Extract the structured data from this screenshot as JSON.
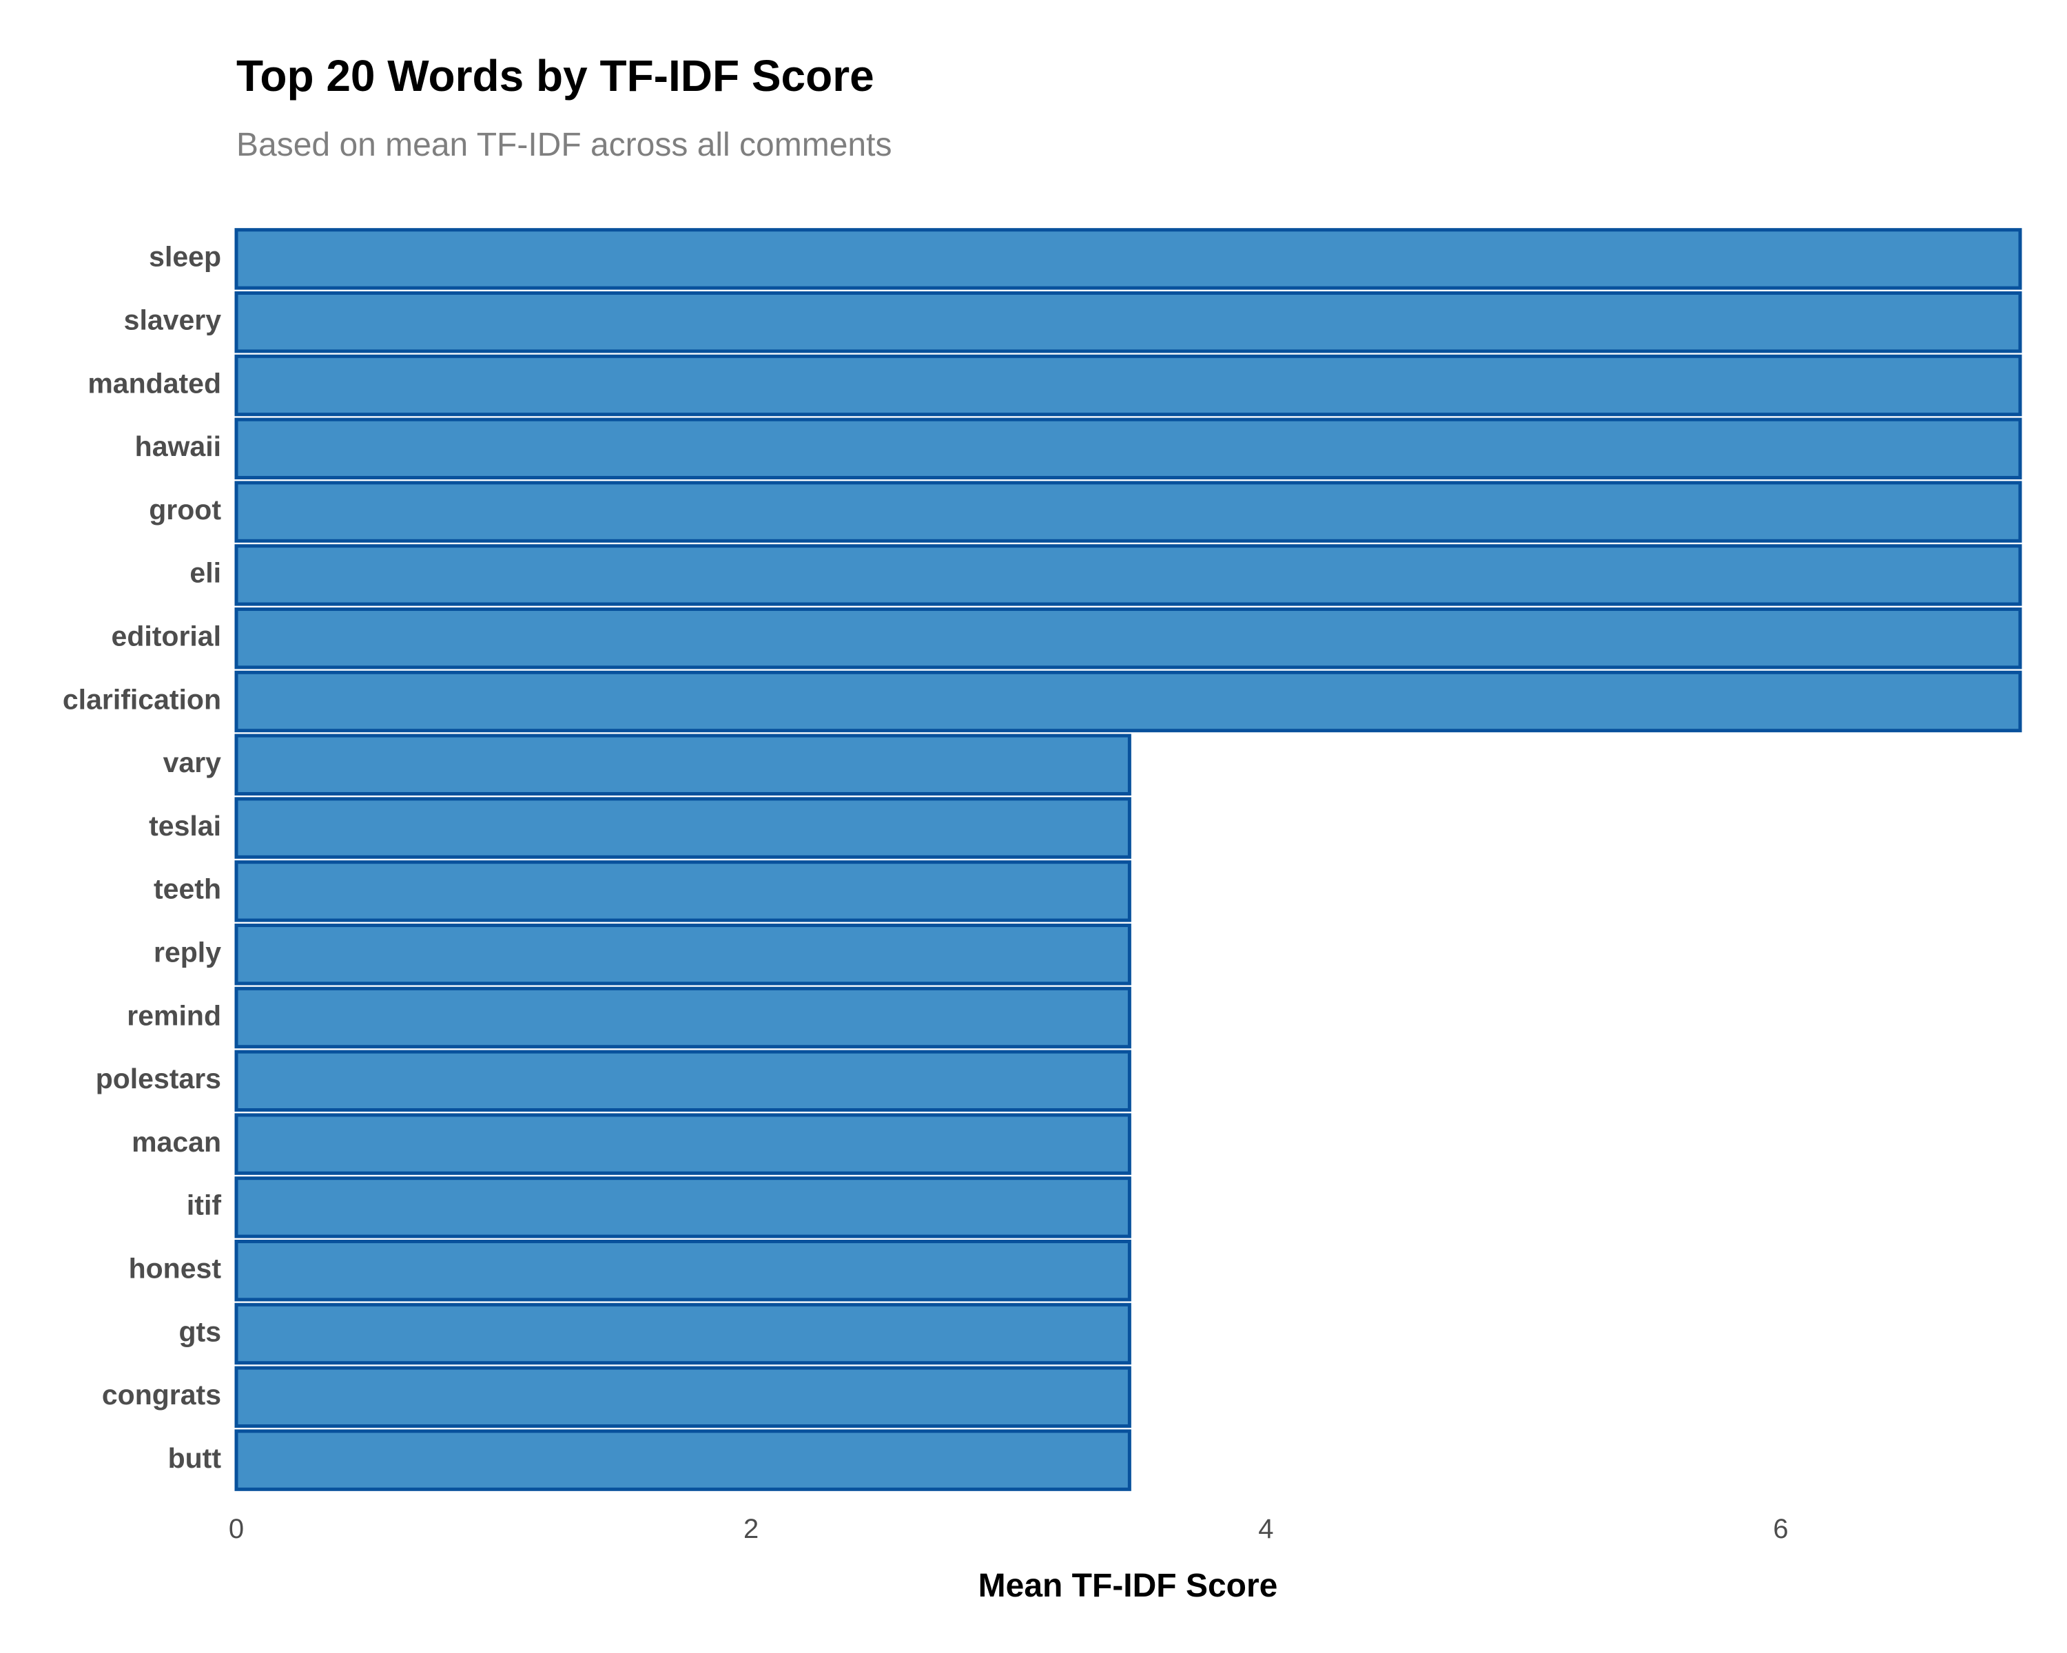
{
  "chart_data": {
    "type": "bar",
    "orientation": "horizontal",
    "title": "Top 20 Words by TF-IDF Score",
    "subtitle": "Based on mean TF-IDF across all comments",
    "xlabel": "Mean TF-IDF Score",
    "ylabel": "",
    "xlim": [
      0,
      6.93
    ],
    "x_ticks": [
      0,
      2,
      4,
      6
    ],
    "grid": false,
    "legend": "none",
    "bar_fill_color": "#4290c8",
    "bar_edge_color": "#08519c",
    "categories": [
      "sleep",
      "slavery",
      "mandated",
      "hawaii",
      "groot",
      "eli",
      "editorial",
      "clarification",
      "vary",
      "teslai",
      "teeth",
      "reply",
      "remind",
      "polestars",
      "macan",
      "itif",
      "honest",
      "gts",
      "congrats",
      "butt"
    ],
    "values": [
      6.93,
      6.93,
      6.93,
      6.93,
      6.93,
      6.93,
      6.93,
      6.93,
      3.47,
      3.47,
      3.47,
      3.47,
      3.47,
      3.47,
      3.47,
      3.47,
      3.47,
      3.47,
      3.47,
      3.47
    ]
  }
}
